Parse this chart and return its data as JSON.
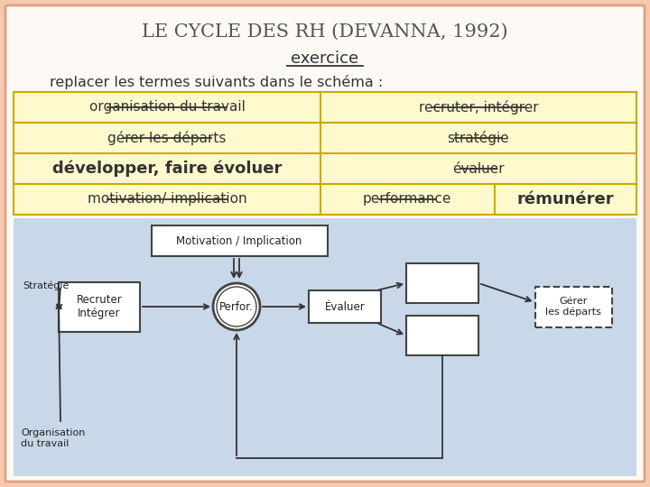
{
  "title": "LE CYCLE DES RH (DEVANNA, 1992)",
  "subtitle": "exercice",
  "instruction": "replacer les termes suivants dans le schéma :",
  "bg_color": "#f5c8b0",
  "table_bg": "#fffacd",
  "table_border": "#ccaa00",
  "diagram_bg": "#c8d8e8",
  "diagram_labels": {
    "motivation_box": "Motivation / Implication",
    "recruter_box": "Recruter\nIntégrer",
    "perfor_circle": "Perfor.",
    "evaluer_box": "Évaluer",
    "gerer_box": "Gérer\nles départs",
    "strategie_label": "Stratégie",
    "organisation_label": "Organisation\ndu travail"
  }
}
